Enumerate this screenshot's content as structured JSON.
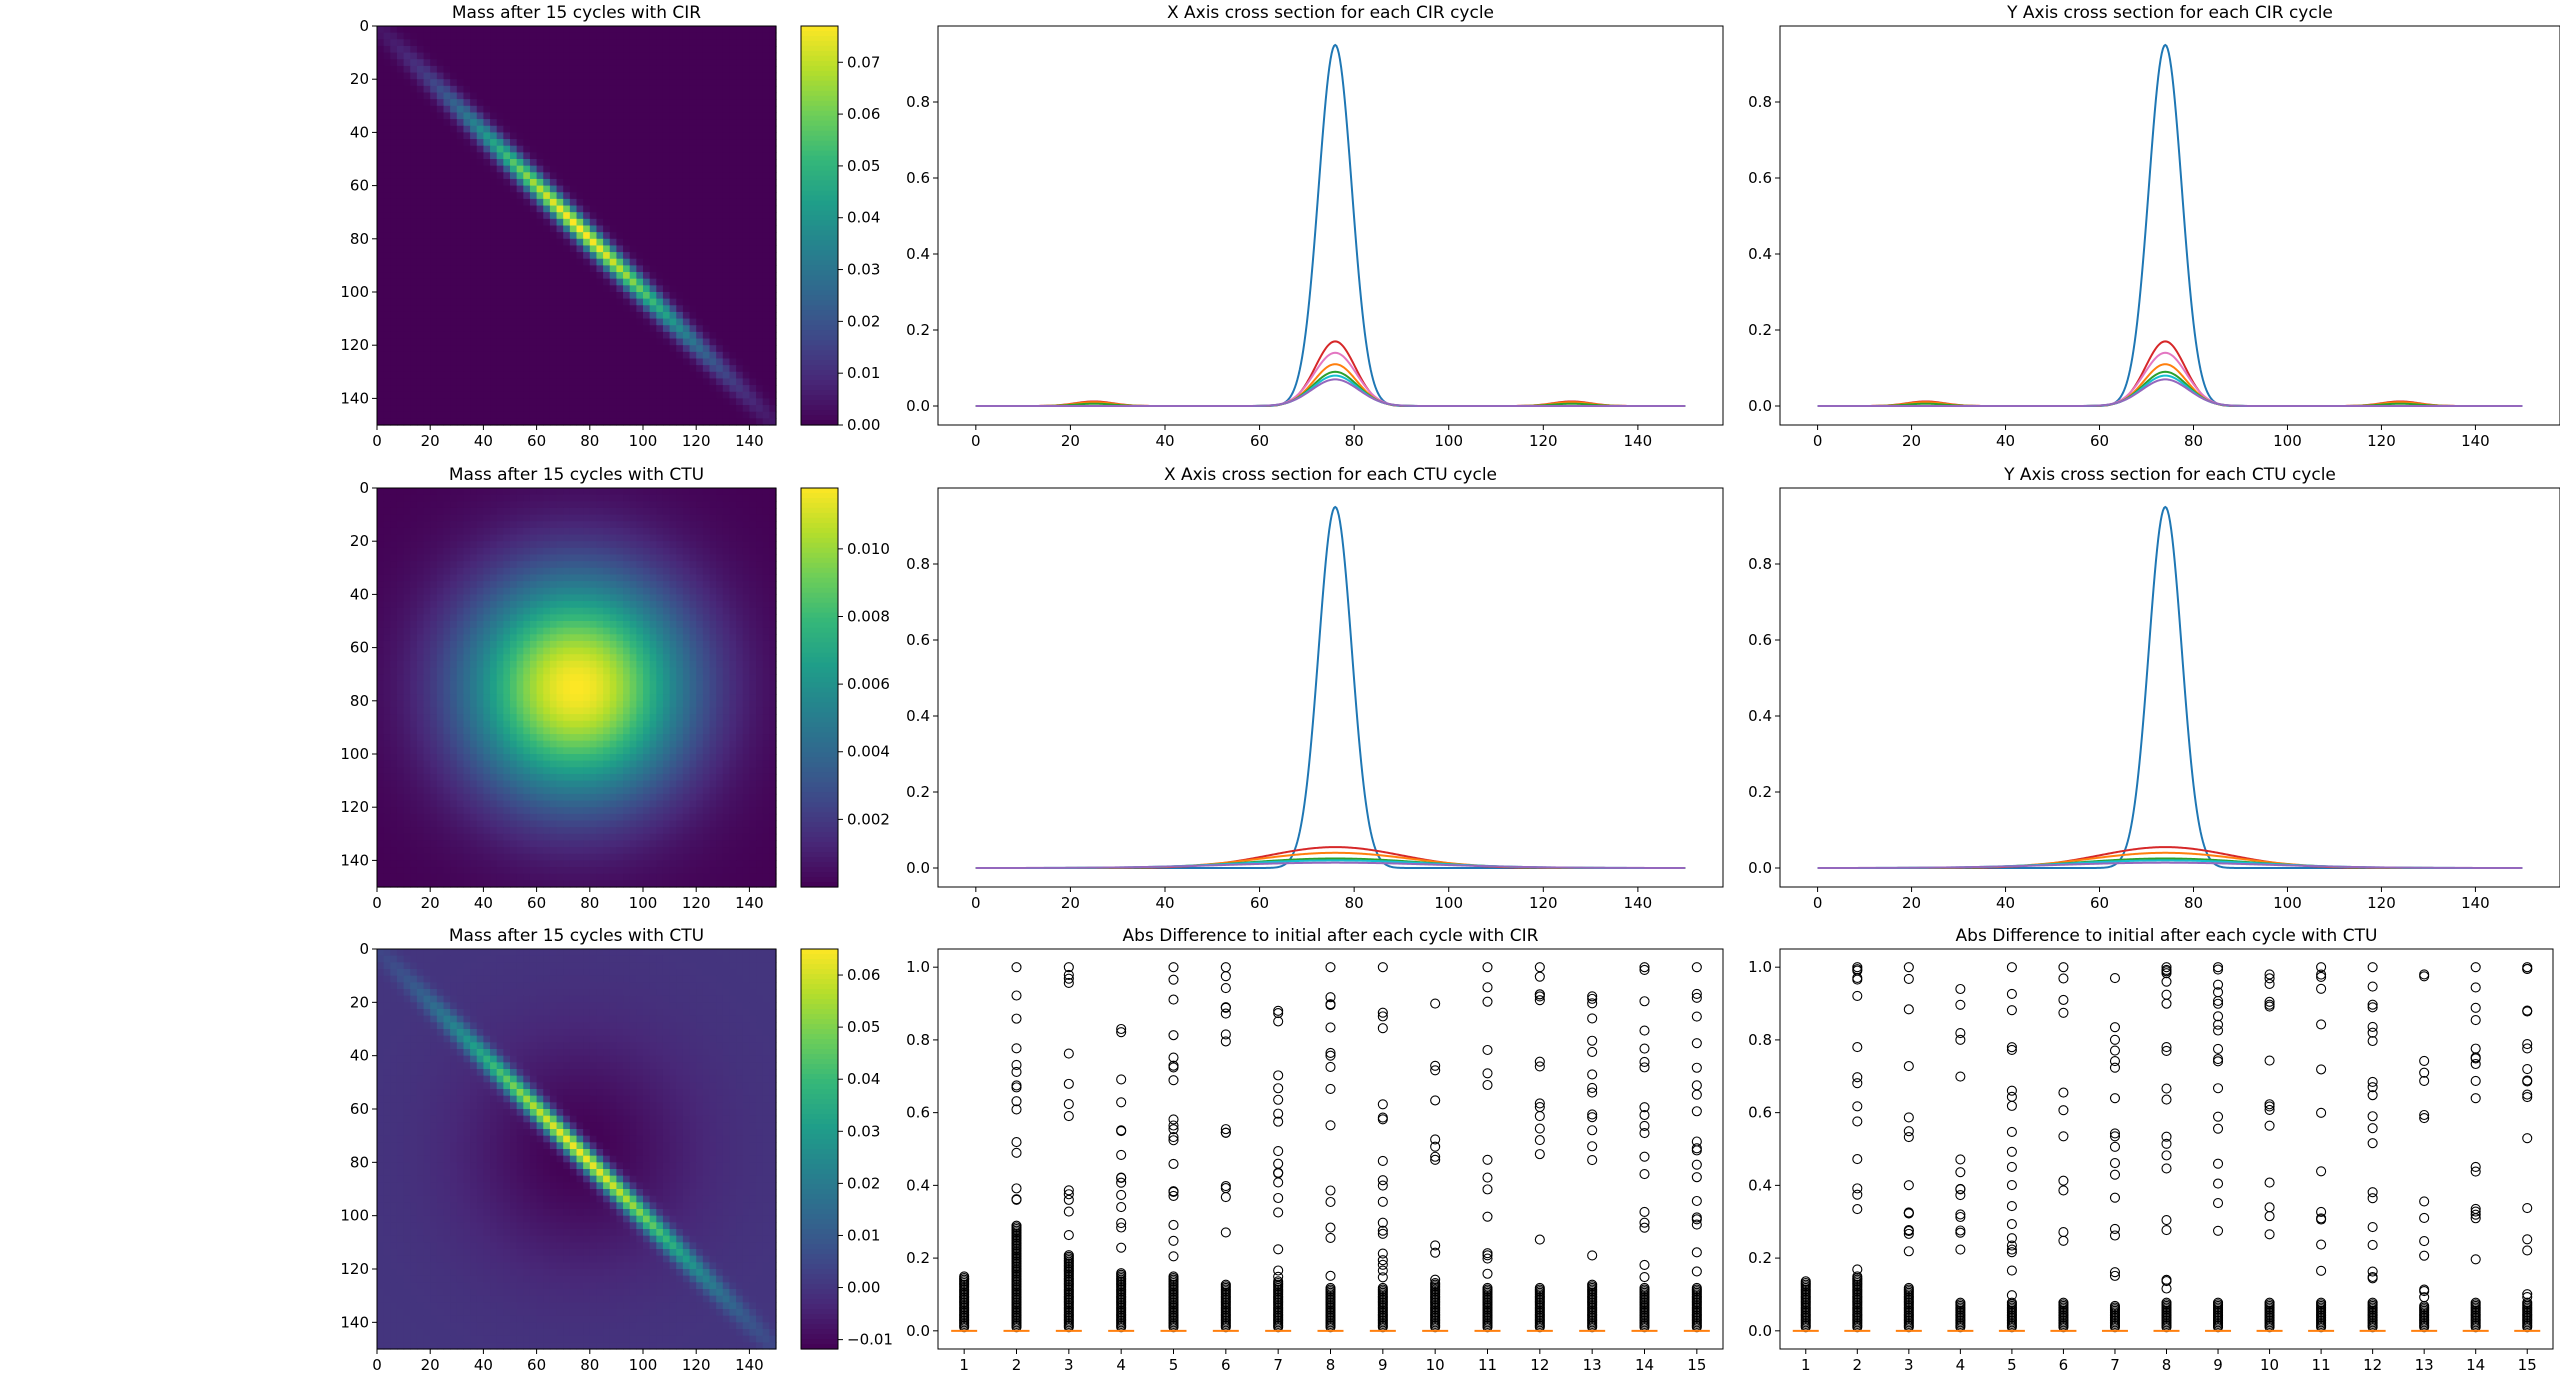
{
  "figure_title": "",
  "chart_data": [
    {
      "type": "heatmap",
      "title": "Mass after 15 cycles with CIR",
      "pattern": "diagonal-gaussian",
      "xlim": [
        0,
        150
      ],
      "ylim": [
        150,
        0
      ],
      "xticks": [
        "0",
        "20",
        "40",
        "60",
        "80",
        "100",
        "120",
        "140"
      ],
      "yticks": [
        "0",
        "20",
        "40",
        "60",
        "80",
        "100",
        "120",
        "140"
      ],
      "peak_at": [
        76,
        76
      ],
      "colorbar": {
        "range": [
          0.0,
          0.077
        ],
        "ticks": [
          "0.00",
          "0.01",
          "0.02",
          "0.03",
          "0.04",
          "0.05",
          "0.06",
          "0.07"
        ],
        "colormap": "viridis"
      },
      "grid": false
    },
    {
      "type": "line",
      "title": "X Axis cross section for each CIR cycle",
      "xlim": [
        0,
        150
      ],
      "ylim": [
        0,
        1
      ],
      "xticks": [
        "0",
        "20",
        "40",
        "60",
        "80",
        "100",
        "120",
        "140"
      ],
      "yticks": [
        "0.0",
        "0.2",
        "0.4",
        "0.6",
        "0.8"
      ],
      "series": [
        {
          "color": "#1f77b4",
          "peaks": [
            [
              76,
              0.95,
              3.5
            ]
          ]
        },
        {
          "color": "#d62728",
          "peaks": [
            [
              76,
              0.17,
              4.2
            ],
            [
              25,
              0.012,
              4
            ],
            [
              126,
              0.012,
              4
            ]
          ]
        },
        {
          "color": "#e377c2",
          "peaks": [
            [
              76,
              0.14,
              4.5
            ],
            [
              25,
              0.008,
              4
            ],
            [
              126,
              0.008,
              4
            ]
          ]
        },
        {
          "color": "#ff7f0e",
          "peaks": [
            [
              76,
              0.11,
              4.5
            ],
            [
              25,
              0.01,
              4
            ],
            [
              126,
              0.01,
              4
            ]
          ]
        },
        {
          "color": "#2ca02c",
          "peaks": [
            [
              76,
              0.09,
              4.7
            ],
            [
              25,
              0.006,
              4
            ],
            [
              126,
              0.006,
              4
            ]
          ]
        },
        {
          "color": "#17becf",
          "peaks": [
            [
              76,
              0.08,
              4.8
            ]
          ]
        },
        {
          "color": "#9467bd",
          "peaks": [
            [
              76,
              0.07,
              5.0
            ]
          ]
        }
      ],
      "grid": false
    },
    {
      "type": "line",
      "title": "Y Axis cross section for each CIR cycle",
      "xlim": [
        0,
        150
      ],
      "ylim": [
        0,
        1
      ],
      "xticks": [
        "0",
        "20",
        "40",
        "60",
        "80",
        "100",
        "120",
        "140"
      ],
      "yticks": [
        "0.0",
        "0.2",
        "0.4",
        "0.6",
        "0.8"
      ],
      "series": [
        {
          "color": "#1f77b4",
          "peaks": [
            [
              74,
              0.95,
              3.5
            ]
          ]
        },
        {
          "color": "#d62728",
          "peaks": [
            [
              74,
              0.17,
              4.2
            ],
            [
              23,
              0.012,
              4
            ],
            [
              124,
              0.012,
              4
            ]
          ]
        },
        {
          "color": "#e377c2",
          "peaks": [
            [
              74,
              0.14,
              4.5
            ],
            [
              23,
              0.008,
              4
            ],
            [
              124,
              0.008,
              4
            ]
          ]
        },
        {
          "color": "#ff7f0e",
          "peaks": [
            [
              74,
              0.11,
              4.5
            ],
            [
              23,
              0.01,
              4
            ],
            [
              124,
              0.01,
              4
            ]
          ]
        },
        {
          "color": "#2ca02c",
          "peaks": [
            [
              74,
              0.09,
              4.7
            ],
            [
              23,
              0.006,
              4
            ],
            [
              124,
              0.006,
              4
            ]
          ]
        },
        {
          "color": "#17becf",
          "peaks": [
            [
              74,
              0.08,
              4.8
            ]
          ]
        },
        {
          "color": "#9467bd",
          "peaks": [
            [
              74,
              0.07,
              5.0
            ]
          ]
        }
      ],
      "grid": false
    },
    {
      "type": "heatmap",
      "title": "Mass after 15 cycles with CTU",
      "pattern": "radial-gaussian",
      "xlim": [
        0,
        150
      ],
      "ylim": [
        150,
        0
      ],
      "xticks": [
        "0",
        "20",
        "40",
        "60",
        "80",
        "100",
        "120",
        "140"
      ],
      "yticks": [
        "0",
        "20",
        "40",
        "60",
        "80",
        "100",
        "120",
        "140"
      ],
      "peak_at": [
        75,
        75
      ],
      "colorbar": {
        "range": [
          0.0,
          0.0118
        ],
        "ticks": [
          "0.002",
          "0.004",
          "0.006",
          "0.008",
          "0.010"
        ],
        "colormap": "viridis"
      },
      "grid": false
    },
    {
      "type": "line",
      "title": "X Axis cross section for each CTU cycle",
      "xlim": [
        0,
        150
      ],
      "ylim": [
        0,
        1
      ],
      "xticks": [
        "0",
        "20",
        "40",
        "60",
        "80",
        "100",
        "120",
        "140"
      ],
      "yticks": [
        "0.0",
        "0.2",
        "0.4",
        "0.6",
        "0.8"
      ],
      "series": [
        {
          "color": "#1f77b4",
          "peaks": [
            [
              76,
              0.95,
              3.5
            ]
          ]
        },
        {
          "color": "#d62728",
          "peaks": [
            [
              76,
              0.055,
              14
            ]
          ]
        },
        {
          "color": "#ff7f0e",
          "peaks": [
            [
              76,
              0.04,
              16
            ]
          ]
        },
        {
          "color": "#2ca02c",
          "peaks": [
            [
              76,
              0.025,
              18
            ]
          ]
        },
        {
          "color": "#17becf",
          "peaks": [
            [
              76,
              0.02,
              20
            ]
          ]
        },
        {
          "color": "#9467bd",
          "peaks": [
            [
              76,
              0.014,
              22
            ]
          ]
        }
      ],
      "grid": false
    },
    {
      "type": "line",
      "title": "Y Axis cross section for each CTU cycle",
      "xlim": [
        0,
        150
      ],
      "ylim": [
        0,
        1
      ],
      "xticks": [
        "0",
        "20",
        "40",
        "60",
        "80",
        "100",
        "120",
        "140"
      ],
      "yticks": [
        "0.0",
        "0.2",
        "0.4",
        "0.6",
        "0.8"
      ],
      "series": [
        {
          "color": "#1f77b4",
          "peaks": [
            [
              74,
              0.95,
              3.5
            ]
          ]
        },
        {
          "color": "#d62728",
          "peaks": [
            [
              74,
              0.055,
              14
            ]
          ]
        },
        {
          "color": "#ff7f0e",
          "peaks": [
            [
              74,
              0.04,
              16
            ]
          ]
        },
        {
          "color": "#2ca02c",
          "peaks": [
            [
              74,
              0.025,
              18
            ]
          ]
        },
        {
          "color": "#17becf",
          "peaks": [
            [
              74,
              0.02,
              20
            ]
          ]
        },
        {
          "color": "#9467bd",
          "peaks": [
            [
              74,
              0.014,
              22
            ]
          ]
        }
      ],
      "grid": false
    },
    {
      "type": "heatmap",
      "title": "Mass after 15 cycles with CTU",
      "pattern": "diagonal-minus-radial",
      "xlim": [
        0,
        150
      ],
      "ylim": [
        150,
        0
      ],
      "xticks": [
        "0",
        "20",
        "40",
        "60",
        "80",
        "100",
        "120",
        "140"
      ],
      "yticks": [
        "0",
        "20",
        "40",
        "60",
        "80",
        "100",
        "120",
        "140"
      ],
      "peak_at": [
        76,
        76
      ],
      "colorbar": {
        "range": [
          -0.0118,
          0.065
        ],
        "ticks": [
          "−0.01",
          "0.00",
          "0.01",
          "0.02",
          "0.03",
          "0.04",
          "0.05",
          "0.06"
        ],
        "colormap": "viridis"
      },
      "grid": false
    },
    {
      "type": "box",
      "title": "Abs Difference to initial after each cycle with CIR",
      "categories": [
        "1",
        "2",
        "3",
        "4",
        "5",
        "6",
        "7",
        "8",
        "9",
        "10",
        "11",
        "12",
        "13",
        "14",
        "15"
      ],
      "ylim": [
        -0.05,
        1.05
      ],
      "yticks": [
        "0.0",
        "0.2",
        "0.4",
        "0.6",
        "0.8",
        "1.0"
      ],
      "medians": [
        0,
        0,
        0,
        0,
        0,
        0,
        0,
        0,
        0,
        0,
        0,
        0,
        0,
        0,
        0
      ],
      "dense_top": [
        0.15,
        0.29,
        0.21,
        0.16,
        0.15,
        0.13,
        0.14,
        0.12,
        0.12,
        0.13,
        0.12,
        0.12,
        0.13,
        0.12,
        0.12
      ],
      "flier_tops": [
        0.15,
        1.0,
        1.0,
        0.83,
        1.0,
        1.0,
        0.88,
        1.0,
        1.0,
        0.9,
        1.0,
        1.0,
        0.92,
        1.0,
        1.0
      ],
      "grid": false
    },
    {
      "type": "box",
      "title": "Abs Difference to initial after each cycle with CTU",
      "categories": [
        "1",
        "2",
        "3",
        "4",
        "5",
        "6",
        "7",
        "8",
        "9",
        "10",
        "11",
        "12",
        "13",
        "14",
        "15"
      ],
      "ylim": [
        -0.05,
        1.05
      ],
      "yticks": [
        "0.0",
        "0.2",
        "0.4",
        "0.6",
        "0.8",
        "1.0"
      ],
      "medians": [
        0,
        0,
        0,
        0,
        0,
        0,
        0,
        0,
        0,
        0,
        0,
        0,
        0,
        0,
        0
      ],
      "dense_top": [
        0.14,
        0.15,
        0.12,
        0.08,
        0.08,
        0.08,
        0.07,
        0.08,
        0.08,
        0.08,
        0.08,
        0.08,
        0.07,
        0.08,
        0.08
      ],
      "flier_tops": [
        0.14,
        1.0,
        1.0,
        0.94,
        1.0,
        1.0,
        0.97,
        1.0,
        1.0,
        0.98,
        1.0,
        1.0,
        0.98,
        1.0,
        1.0
      ],
      "grid": false
    }
  ]
}
